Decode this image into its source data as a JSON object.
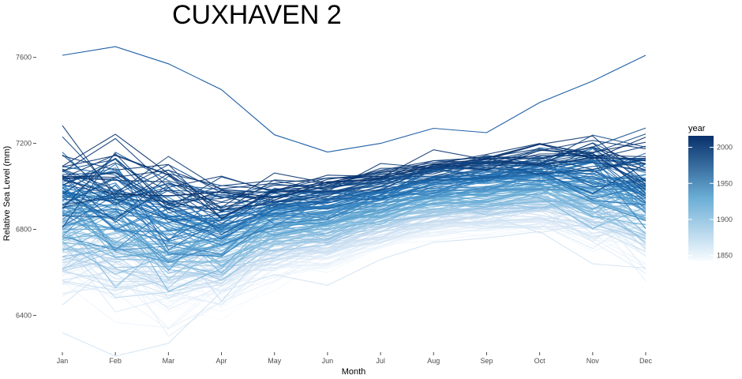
{
  "chart_data": {
    "type": "line",
    "title": "CUXHAVEN 2",
    "xlabel": "Month",
    "ylabel": "Relative Sea Level (mm)",
    "categories": [
      "Jan",
      "Feb",
      "Mar",
      "Apr",
      "May",
      "Jun",
      "Jul",
      "Aug",
      "Sep",
      "Oct",
      "Nov",
      "Dec"
    ],
    "ylim": [
      6240,
      7720
    ],
    "yticks": [
      6400,
      6800,
      7200,
      7600
    ],
    "grid": false,
    "legend": {
      "title": "year",
      "position": "right",
      "ticks": [
        1850,
        1900,
        1950,
        2000
      ],
      "range": [
        1843,
        2016
      ],
      "color_low": "#f7fbff",
      "color_high": "#08306b"
    },
    "year_range": [
      1843,
      2016
    ],
    "base_trend": {
      "note_units": "mm",
      "start_profile": [
        6580,
        6520,
        6470,
        6490,
        6600,
        6640,
        6720,
        6780,
        6790,
        6800,
        6760,
        6720
      ],
      "end_profile": [
        7100,
        7060,
        7010,
        6960,
        7000,
        7020,
        7060,
        7110,
        7140,
        7180,
        7170,
        7130
      ]
    },
    "highlighted_extremes": [
      {
        "month": "Jan",
        "min": 6320,
        "max": 7610
      },
      {
        "month": "Feb",
        "min": 6210,
        "max": 7650
      },
      {
        "month": "Mar",
        "min": 6270,
        "max": 7570
      },
      {
        "month": "Apr",
        "min": 6510,
        "max": 7450
      },
      {
        "month": "May",
        "min": 6590,
        "max": 7240
      },
      {
        "month": "Jun",
        "min": 6540,
        "max": 7160
      },
      {
        "month": "Jul",
        "min": 6660,
        "max": 7200
      },
      {
        "month": "Aug",
        "min": 6740,
        "max": 7270
      },
      {
        "month": "Sep",
        "min": 6760,
        "max": 7250
      },
      {
        "month": "Oct",
        "min": 6790,
        "max": 7390
      },
      {
        "month": "Nov",
        "min": 6640,
        "max": 7490
      },
      {
        "month": "Dec",
        "min": 6620,
        "max": 7610
      }
    ]
  }
}
